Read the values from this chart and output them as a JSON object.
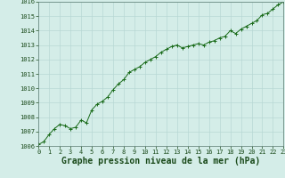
{
  "x": [
    0,
    0.5,
    1,
    1.5,
    2,
    2.5,
    3,
    3.5,
    4,
    4.5,
    5,
    5.5,
    6,
    6.5,
    7,
    7.5,
    8,
    8.5,
    9,
    9.5,
    10,
    10.5,
    11,
    11.5,
    12,
    12.5,
    13,
    13.5,
    14,
    14.5,
    15,
    15.5,
    16,
    16.5,
    17,
    17.5,
    18,
    18.5,
    19,
    19.5,
    20,
    20.5,
    21,
    21.5,
    22,
    22.5,
    23
  ],
  "y": [
    1006.1,
    1006.3,
    1006.8,
    1007.2,
    1007.5,
    1007.4,
    1007.2,
    1007.3,
    1007.8,
    1007.6,
    1008.5,
    1008.9,
    1009.1,
    1009.4,
    1009.9,
    1010.3,
    1010.6,
    1011.1,
    1011.3,
    1011.5,
    1011.8,
    1012.0,
    1012.2,
    1012.5,
    1012.7,
    1012.9,
    1013.0,
    1012.8,
    1012.9,
    1013.0,
    1013.1,
    1013.0,
    1013.2,
    1013.3,
    1013.5,
    1013.6,
    1014.0,
    1013.8,
    1014.1,
    1014.3,
    1014.5,
    1014.7,
    1015.1,
    1015.2,
    1015.5,
    1015.8,
    1016.0
  ],
  "line_color": "#1a6b1a",
  "marker_color": "#1a6b1a",
  "bg_color": "#d4ede8",
  "grid_color": "#b8d8d4",
  "xlabel": "Graphe pression niveau de la mer (hPa)",
  "xlim": [
    0,
    23
  ],
  "ylim": [
    1006,
    1016
  ],
  "yticks": [
    1006,
    1007,
    1008,
    1009,
    1010,
    1011,
    1012,
    1013,
    1014,
    1015,
    1016
  ],
  "xticks": [
    0,
    1,
    2,
    3,
    4,
    5,
    6,
    7,
    8,
    9,
    10,
    11,
    12,
    13,
    14,
    15,
    16,
    17,
    18,
    19,
    20,
    21,
    22,
    23
  ],
  "tick_label_fontsize": 5.0,
  "xlabel_fontsize": 7.0,
  "outer_bg": "#d4ede8"
}
